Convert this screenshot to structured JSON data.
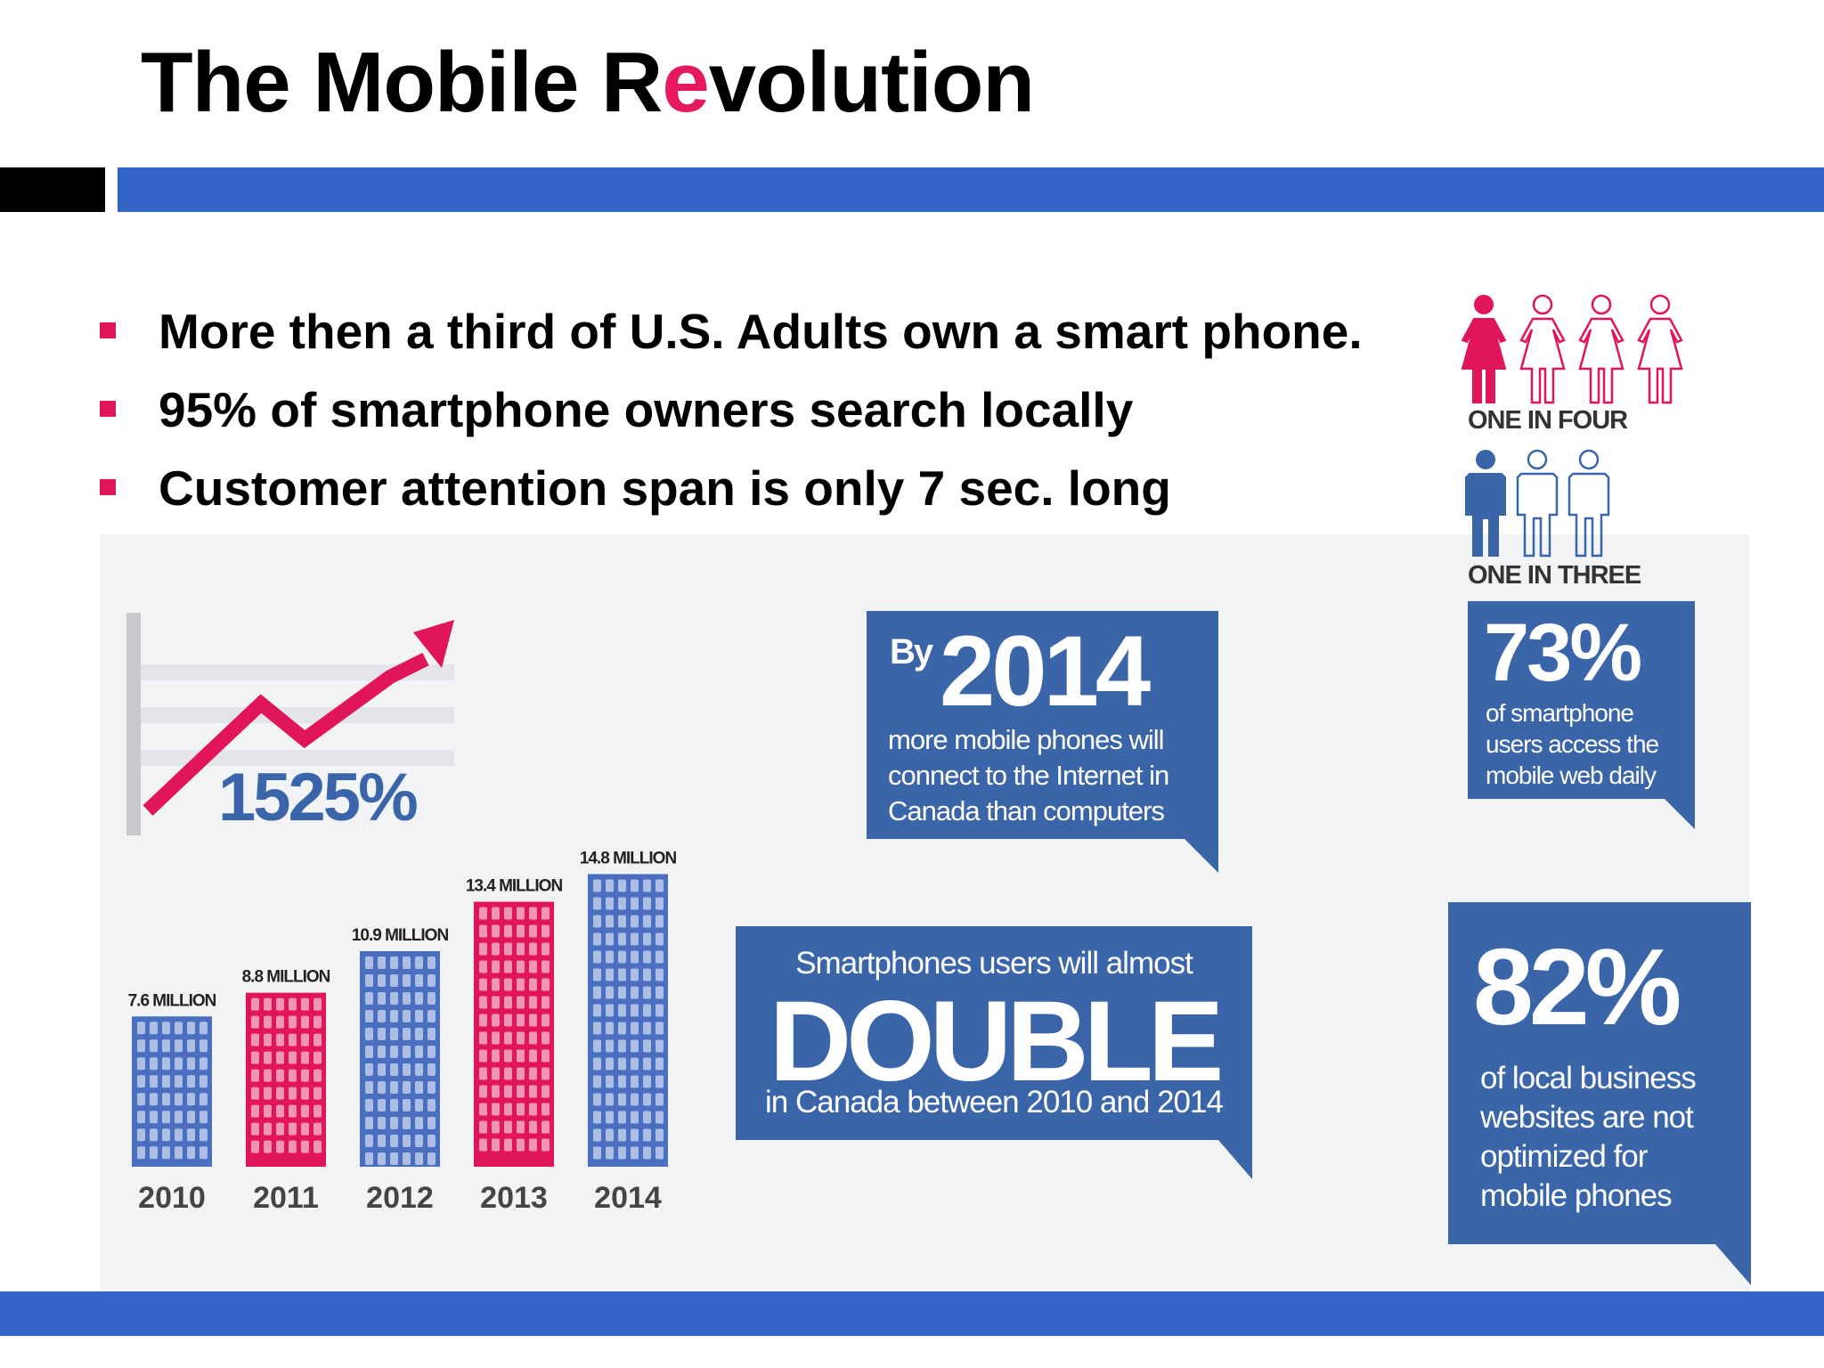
{
  "title": {
    "before": "The Mobile R",
    "accent": "e",
    "after": "volution"
  },
  "bullets": [
    "More then a third of U.S. Adults own a smart phone.",
    "95% of smartphone owners search locally",
    "Customer attention span is only 7 sec. long"
  ],
  "colors": {
    "accent": "#e5195b",
    "slide_blue": "#3565c8",
    "box_blue": "#3a65a8",
    "pink": "#e0155b",
    "chart_blue": "#4a6fc0"
  },
  "growth": {
    "label": "1525%"
  },
  "people": {
    "women_caption": "ONE IN FOUR",
    "men_caption": "ONE IN THREE",
    "women_highlighted": 1,
    "women_total": 4,
    "men_highlighted": 1,
    "men_total": 3
  },
  "box_2014": {
    "by": "By",
    "year": "2014",
    "text": [
      "more mobile phones will",
      "connect to the Internet in",
      "Canada than computers"
    ]
  },
  "box_73": {
    "value": "73%",
    "text": [
      "of smartphone",
      "users access the",
      "mobile web daily"
    ]
  },
  "box_double": {
    "line1": "Smartphones users will almost",
    "big": "DOUBLE",
    "line2": "in Canada between 2010 and 2014"
  },
  "box_82": {
    "value": "82%",
    "text": [
      "of local business",
      "websites are not",
      "optimized for",
      "mobile phones"
    ]
  },
  "chart_data": {
    "type": "bar",
    "categories": [
      "2010",
      "2011",
      "2012",
      "2013",
      "2014"
    ],
    "values": [
      7.6,
      8.8,
      10.9,
      13.4,
      14.8
    ],
    "value_labels": [
      "7.6 MILLION",
      "8.8 MILLION",
      "10.9 MILLION",
      "13.4 MILLION",
      "14.8 MILLION"
    ],
    "bar_colors": [
      "#4a6fc0",
      "#e0155b",
      "#4a6fc0",
      "#e0155b",
      "#4a6fc0"
    ],
    "title": "",
    "xlabel": "",
    "ylabel": "",
    "grid": false,
    "legend": "none"
  }
}
